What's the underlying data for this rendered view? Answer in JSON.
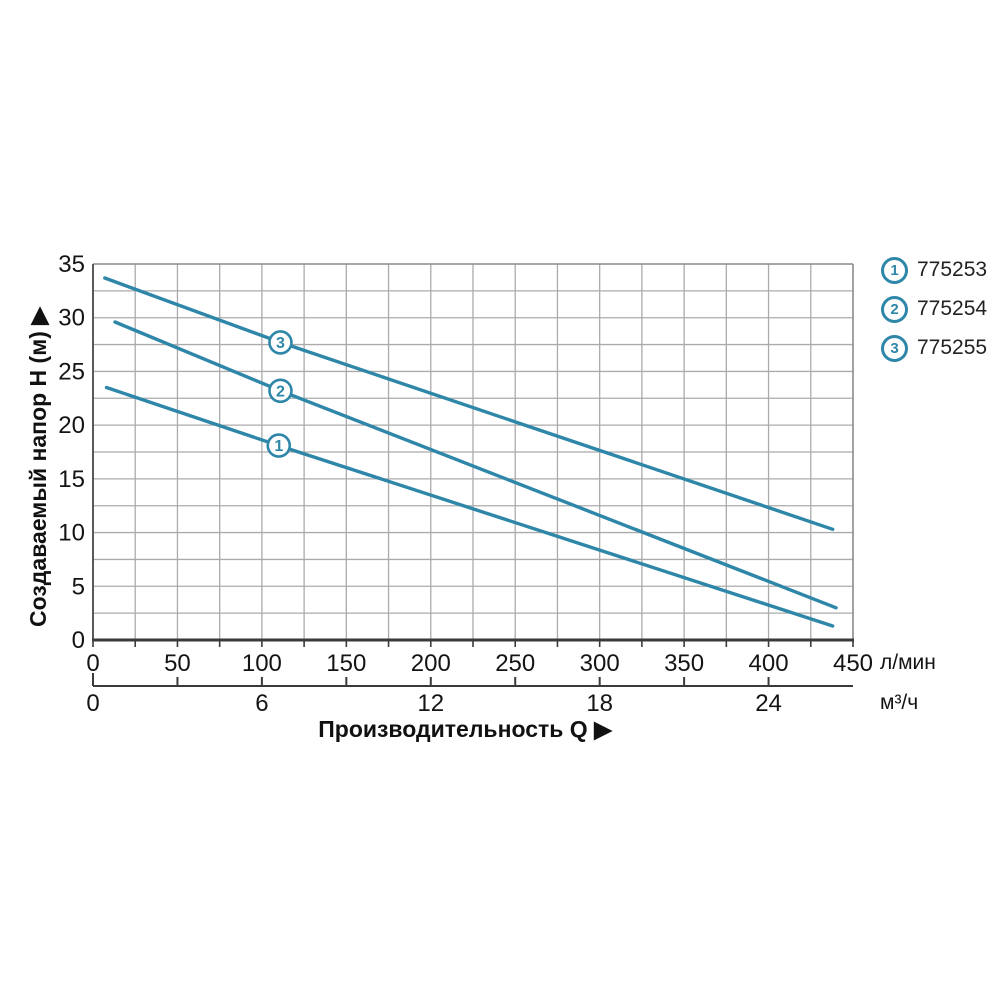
{
  "chart_data": {
    "type": "line",
    "title": "",
    "ylabel": "Создаваемый напор H (м) ▶",
    "xlabel": "Производительность Q ▶",
    "y_axis": {
      "min": 0,
      "max": 35,
      "major_ticks": [
        0,
        5,
        10,
        15,
        20,
        25,
        30,
        35
      ],
      "grid_step": 2.5
    },
    "x_axis_lmin": {
      "unit": "л/мин",
      "min": 0,
      "max": 450,
      "major_ticks": [
        0,
        50,
        100,
        150,
        200,
        250,
        300,
        350,
        400,
        450
      ],
      "grid_step": 25
    },
    "x_axis_m3h": {
      "unit": "м³/ч",
      "min": 0,
      "max_tick": 24,
      "labeled_ticks": [
        0,
        6,
        12,
        18,
        24
      ],
      "tick_step": 3,
      "lmin_per_unit": 16.6667
    },
    "series": [
      {
        "id": "1",
        "code": "775253",
        "points": [
          [
            8,
            23.5
          ],
          [
            110,
            18.1
          ],
          [
            438,
            1.3
          ]
        ]
      },
      {
        "id": "2",
        "code": "775254",
        "points": [
          [
            13,
            29.6
          ],
          [
            111,
            23.2
          ],
          [
            440,
            3.0
          ]
        ]
      },
      {
        "id": "3",
        "code": "775255",
        "points": [
          [
            7,
            33.7
          ],
          [
            111,
            27.7
          ],
          [
            438,
            10.3
          ]
        ]
      }
    ],
    "legend": [
      {
        "num": "1",
        "label": "775253"
      },
      {
        "num": "2",
        "label": "775254"
      },
      {
        "num": "3",
        "label": "775255"
      }
    ],
    "grid": true,
    "legend_position": "top-right"
  },
  "colors": {
    "curve": "#2e86a8",
    "grid": "#ababab",
    "border": "#8a8a8a",
    "axis_left": "#5a5a5a",
    "axis_dark": "#3a3a3a",
    "text": "#141414",
    "legend_text": "#222222",
    "background": "#ffffff"
  }
}
